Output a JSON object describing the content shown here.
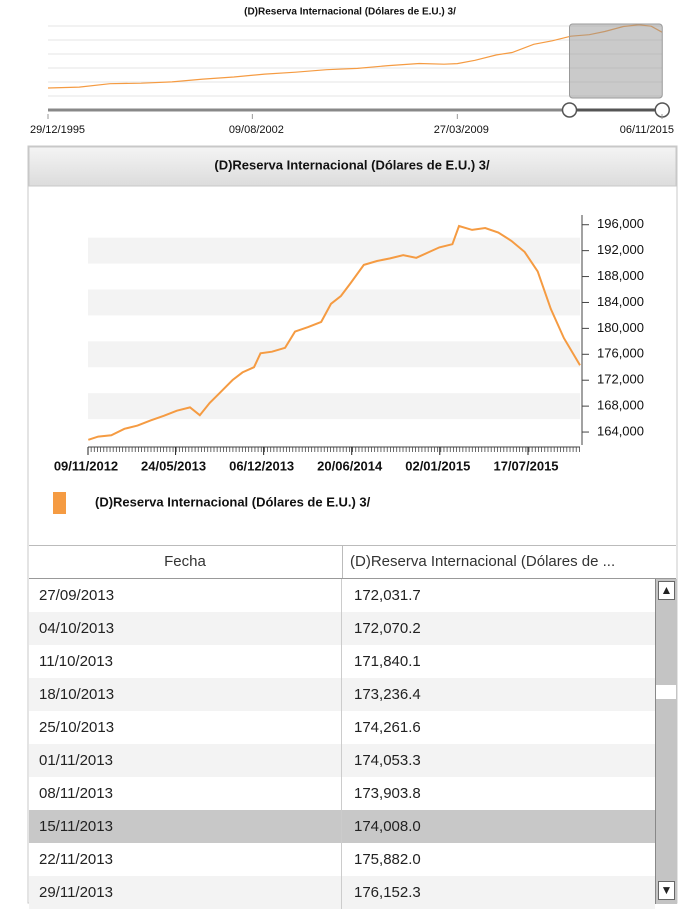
{
  "chart_data": [
    {
      "type": "line",
      "title": "(D)Reserva Internacional (Dólares de E.U.) 3/",
      "color": "#f59b42",
      "x": [
        1995.99,
        1997,
        1998,
        1999,
        2000,
        2001,
        2002,
        2003,
        2004,
        2005,
        2006,
        2007,
        2008,
        2008.8,
        2009.23,
        2009.8,
        2010.5,
        2011,
        2011.7,
        2012.3,
        2012.9,
        2013.5,
        2014,
        2014.6,
        2015.1,
        2015.5,
        2015.85
      ],
      "values": [
        17000,
        19500,
        29000,
        30500,
        34000,
        42000,
        48000,
        56000,
        61500,
        68500,
        72000,
        80000,
        86000,
        84000,
        85500,
        95000,
        110000,
        117000,
        140000,
        150000,
        162800,
        167000,
        176000,
        190000,
        195000,
        191000,
        174000
      ],
      "xlim": [
        1995.99,
        2015.85
      ],
      "ylim": [
        0,
        200000
      ],
      "xticks": [
        {
          "value": 1995.99,
          "label": "29/12/1995"
        },
        {
          "value": 2002.6,
          "label": "09/08/2002"
        },
        {
          "value": 2009.23,
          "label": "27/03/2009"
        },
        {
          "value": 2015.85,
          "label": "06/11/2015"
        }
      ]
    },
    {
      "type": "line",
      "title": "(D)Reserva Internacional (Dólares de E.U.) 3/",
      "x": [
        2012.86,
        2012.92,
        2013.0,
        2013.08,
        2013.16,
        2013.24,
        2013.32,
        2013.4,
        2013.48,
        2013.54,
        2013.6,
        2013.66,
        2013.74,
        2013.8,
        2013.87,
        2013.91,
        2013.98,
        2014.06,
        2014.12,
        2014.2,
        2014.28,
        2014.34,
        2014.4,
        2014.46,
        2014.54,
        2014.62,
        2014.7,
        2014.78,
        2014.86,
        2014.94,
        2015.0,
        2015.08,
        2015.12,
        2015.2,
        2015.28,
        2015.36,
        2015.44,
        2015.52,
        2015.6,
        2015.68,
        2015.76,
        2015.858
      ],
      "series": [
        {
          "name": "(D)Reserva Internacional (Dólares de E.U.) 3/",
          "color": "#f59b42",
          "values": [
            162800,
            163300,
            163500,
            164500,
            165000,
            165800,
            166500,
            167300,
            167800,
            166600,
            168500,
            170000,
            172032,
            173200,
            174008,
            176152,
            176400,
            177000,
            179500,
            180200,
            181000,
            183800,
            185000,
            187000,
            189800,
            190400,
            190800,
            191300,
            190900,
            191800,
            192500,
            193000,
            195800,
            195200,
            195500,
            194800,
            193500,
            191800,
            188800,
            183000,
            178500,
            174300
          ]
        }
      ],
      "xlim": [
        2012.858,
        2015.858
      ],
      "ylim": [
        162000,
        197500
      ],
      "xticks": [
        {
          "value": 2012.858,
          "label": "09/11/2012"
        },
        {
          "value": 2013.392,
          "label": "24/05/2013"
        },
        {
          "value": 2013.929,
          "label": "06/12/2013"
        },
        {
          "value": 2014.466,
          "label": "20/06/2014"
        },
        {
          "value": 2015.003,
          "label": "02/01/2015"
        },
        {
          "value": 2015.541,
          "label": "17/07/2015"
        }
      ],
      "yticks": [
        {
          "value": 164000,
          "label": "164,000"
        },
        {
          "value": 168000,
          "label": "168,000"
        },
        {
          "value": 172000,
          "label": "172,000"
        },
        {
          "value": 176000,
          "label": "176,000"
        },
        {
          "value": 180000,
          "label": "180,000"
        },
        {
          "value": 184000,
          "label": "184,000"
        },
        {
          "value": 188000,
          "label": "188,000"
        },
        {
          "value": 192000,
          "label": "192,000"
        },
        {
          "value": 196000,
          "label": "196,000"
        }
      ]
    }
  ],
  "table": {
    "columns": [
      "Fecha",
      "(D)Reserva Internacional (Dólares de ..."
    ],
    "rows": [
      [
        "27/09/2013",
        "172,031.7"
      ],
      [
        "04/10/2013",
        "172,070.2"
      ],
      [
        "11/10/2013",
        "171,840.1"
      ],
      [
        "18/10/2013",
        "173,236.4"
      ],
      [
        "25/10/2013",
        "174,261.6"
      ],
      [
        "01/11/2013",
        "174,053.3"
      ],
      [
        "08/11/2013",
        "173,903.8"
      ],
      [
        "15/11/2013",
        "174,008.0"
      ],
      [
        "22/11/2013",
        "175,882.0"
      ],
      [
        "29/11/2013",
        "176,152.3"
      ]
    ]
  }
}
